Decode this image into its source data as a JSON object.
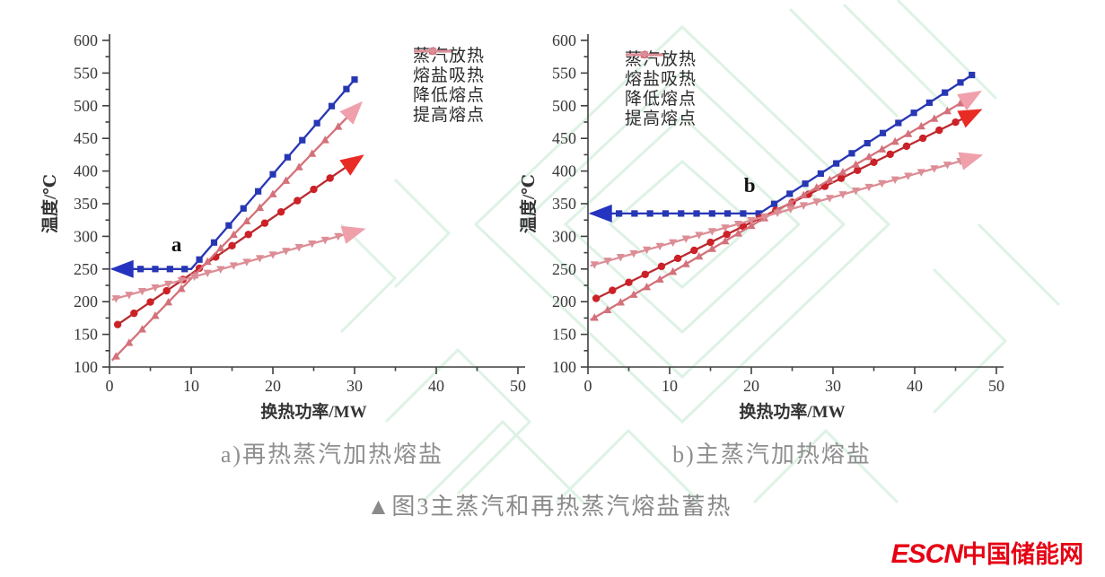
{
  "page": {
    "background": "#ffffff"
  },
  "figure_caption": "▲图3主蒸汽和再热蒸汽熔盐蓄热",
  "logo": {
    "en": "ESCN",
    "cn": "中国储能网",
    "color": "#e60013"
  },
  "watermark": {
    "color": "#c3e9cf"
  },
  "chart_data": [
    {
      "id": "a",
      "type": "line",
      "caption": "a)再热蒸汽加热熔盐",
      "xlabel": "换热功率/MW",
      "ylabel": "温度/℃",
      "xlim": [
        0,
        50
      ],
      "ylim": [
        100,
        600
      ],
      "xticks": [
        0,
        10,
        20,
        30,
        40,
        50
      ],
      "yticks": [
        100,
        150,
        200,
        250,
        300,
        350,
        400,
        450,
        500,
        550,
        600
      ],
      "x_minor_step": 5,
      "y_minor_step": 25,
      "grid": false,
      "legend_position": "top-right",
      "annotation": {
        "text": "a",
        "x": 8.2,
        "y": 277
      },
      "series": [
        {
          "id": "steam-heat-release",
          "name": "蒸汽放热",
          "color": "#2737b4",
          "arrow_color": "#2434c0",
          "marker": "square",
          "points": [
            [
              0.3,
              250
            ],
            [
              10,
              250
            ],
            [
              30,
              540
            ]
          ],
          "marker_x0": 3.8,
          "marker_dx": 1.8,
          "start_arrow": true,
          "end_arrow": false
        },
        {
          "id": "molten-salt-heat-absorb",
          "name": "熔盐吸热",
          "color": "#b92a2e",
          "marker_color": "#cb2127",
          "arrow_color": "#e82b24",
          "marker": "circle",
          "points": [
            [
              1,
              165
            ],
            [
              30,
              415
            ]
          ],
          "marker_x0": 1,
          "marker_dx": 2,
          "start_arrow": false,
          "end_arrow": true
        },
        {
          "id": "lowered-melting-point",
          "name": "降低熔点",
          "color": "#d4717a",
          "arrow_color": "#efa0ab",
          "marker": "triangle-up",
          "points": [
            [
              0.3,
              110
            ],
            [
              30,
              494
            ]
          ],
          "marker_x0": 0.8,
          "marker_dx": 1.6,
          "start_arrow": false,
          "end_arrow": true
        },
        {
          "id": "raised-melting-point",
          "name": "提高熔点",
          "color": "#dc8d95",
          "arrow_color": "#efa0ab",
          "marker": "triangle-down",
          "points": [
            [
              0.3,
              203
            ],
            [
              30,
              307
            ]
          ],
          "marker_x0": 0.8,
          "marker_dx": 1.6,
          "start_arrow": false,
          "end_arrow": true
        }
      ]
    },
    {
      "id": "b",
      "type": "line",
      "caption": "b)主蒸汽加热熔盐",
      "xlabel": "换热功率/MW",
      "ylabel": "温度/℃",
      "xlim": [
        0,
        50
      ],
      "ylim": [
        100,
        600
      ],
      "xticks": [
        0,
        10,
        20,
        30,
        40,
        50
      ],
      "yticks": [
        100,
        150,
        200,
        250,
        300,
        350,
        400,
        450,
        500,
        550,
        600
      ],
      "x_minor_step": 5,
      "y_minor_step": 25,
      "grid": false,
      "legend_position": "top-left",
      "annotation": {
        "text": "b",
        "x": 19.8,
        "y": 368
      },
      "series": [
        {
          "id": "steam-heat-release",
          "name": "蒸汽放热",
          "color": "#2737b4",
          "arrow_color": "#2434c0",
          "marker": "square",
          "points": [
            [
              0.3,
              335
            ],
            [
              21,
              335
            ],
            [
              47,
              547
            ]
          ],
          "marker_x0": 3.8,
          "marker_dx": 1.9,
          "start_arrow": true,
          "end_arrow": false
        },
        {
          "id": "molten-salt-heat-absorb",
          "name": "熔盐吸热",
          "color": "#b92a2e",
          "marker_color": "#cb2127",
          "arrow_color": "#e82b24",
          "marker": "circle",
          "points": [
            [
              1,
              205
            ],
            [
              47,
              487
            ]
          ],
          "marker_x0": 1,
          "marker_dx": 2,
          "start_arrow": false,
          "end_arrow": true
        },
        {
          "id": "lowered-melting-point",
          "name": "降低熔点",
          "color": "#d4717a",
          "arrow_color": "#efa0ab",
          "marker": "triangle-up",
          "points": [
            [
              0.3,
              172
            ],
            [
              47,
              514
            ]
          ],
          "marker_x0": 0.8,
          "marker_dx": 1.6,
          "start_arrow": false,
          "end_arrow": true
        },
        {
          "id": "raised-melting-point",
          "name": "提高熔点",
          "color": "#dc8d95",
          "arrow_color": "#efa0ab",
          "marker": "triangle-down",
          "points": [
            [
              0.3,
              255
            ],
            [
              47,
              420
            ]
          ],
          "marker_x0": 0.8,
          "marker_dx": 1.6,
          "start_arrow": false,
          "end_arrow": true
        }
      ]
    }
  ]
}
